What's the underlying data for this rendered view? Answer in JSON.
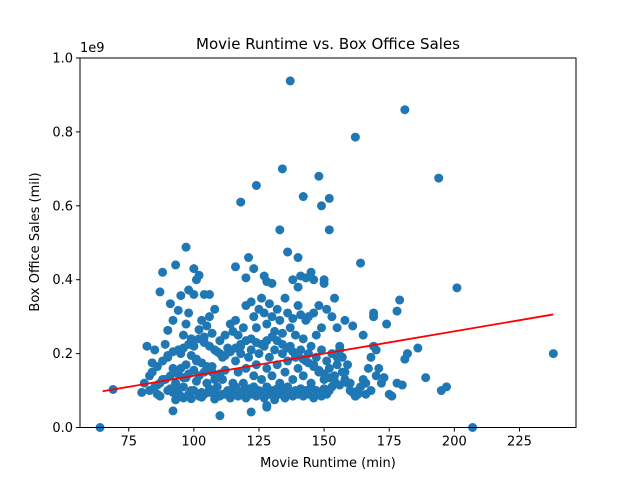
{
  "chart_data": {
    "type": "scatter",
    "title": "Movie Runtime vs. Box Office Sales",
    "xlabel": "Movie Runtime (min)",
    "ylabel": "Box Office Sales (mil)",
    "offset_text": "1e9",
    "xlim": [
      56.3,
      246.7
    ],
    "ylim": [
      0,
      1.0
    ],
    "xticks": [
      75,
      100,
      125,
      150,
      175,
      200,
      225
    ],
    "yticks": [
      0.0,
      0.2,
      0.4,
      0.6,
      0.8,
      1.0
    ],
    "ytick_labels": [
      "0.0",
      "0.2",
      "0.4",
      "0.6",
      "0.8",
      "1.0"
    ],
    "grid": false,
    "legend": "none",
    "point_color": "#1f77b4",
    "trend_color": "#ff0000",
    "trendline": {
      "x": [
        65,
        238
      ],
      "y": [
        0.098,
        0.306
      ]
    },
    "points": [
      [
        64,
        0.0
      ],
      [
        69,
        0.103
      ],
      [
        86,
        0.09
      ],
      [
        87,
        0.085
      ],
      [
        88,
        0.42
      ],
      [
        87,
        0.367
      ],
      [
        90,
        0.263
      ],
      [
        91,
        0.335
      ],
      [
        92,
        0.29
      ],
      [
        93,
        0.44
      ],
      [
        94,
        0.317
      ],
      [
        95,
        0.357
      ],
      [
        97,
        0.488
      ],
      [
        98,
        0.372
      ],
      [
        100,
        0.43
      ],
      [
        101,
        0.4
      ],
      [
        102,
        0.412
      ],
      [
        104,
        0.36
      ],
      [
        106,
        0.36
      ],
      [
        100,
        0.36
      ],
      [
        80,
        0.095
      ],
      [
        82,
        0.22
      ],
      [
        84,
        0.175
      ],
      [
        85,
        0.21
      ],
      [
        83,
        0.14
      ],
      [
        89,
        0.225
      ],
      [
        90,
        0.19
      ],
      [
        92,
        0.16
      ],
      [
        93,
        0.12
      ],
      [
        95,
        0.2
      ],
      [
        96,
        0.25
      ],
      [
        97,
        0.28
      ],
      [
        98,
        0.31
      ],
      [
        99,
        0.24
      ],
      [
        100,
        0.22
      ],
      [
        101,
        0.18
      ],
      [
        102,
        0.265
      ],
      [
        103,
        0.29
      ],
      [
        104,
        0.245
      ],
      [
        105,
        0.275
      ],
      [
        106,
        0.3
      ],
      [
        107,
        0.255
      ],
      [
        108,
        0.32
      ],
      [
        109,
        0.205
      ],
      [
        110,
        0.235
      ],
      [
        111,
        0.19
      ],
      [
        112,
        0.25
      ],
      [
        113,
        0.215
      ],
      [
        114,
        0.28
      ],
      [
        115,
        0.26
      ],
      [
        86,
        0.115
      ],
      [
        88,
        0.13
      ],
      [
        91,
        0.105
      ],
      [
        93,
        0.09
      ],
      [
        94,
        0.145
      ],
      [
        96,
        0.11
      ],
      [
        97,
        0.135
      ],
      [
        99,
        0.1
      ],
      [
        101,
        0.125
      ],
      [
        102,
        0.14
      ],
      [
        103,
        0.095
      ],
      [
        104,
        0.15
      ],
      [
        105,
        0.12
      ],
      [
        106,
        0.105
      ],
      [
        107,
        0.165
      ],
      [
        108,
        0.13
      ],
      [
        109,
        0.11
      ],
      [
        110,
        0.145
      ],
      [
        111,
        0.09
      ],
      [
        112,
        0.155
      ],
      [
        92,
        0.045
      ],
      [
        110,
        0.032
      ],
      [
        122,
        0.042
      ],
      [
        128,
        0.06
      ],
      [
        93,
        0.075
      ],
      [
        96,
        0.08
      ],
      [
        99,
        0.078
      ],
      [
        103,
        0.082
      ],
      [
        108,
        0.077
      ],
      [
        114,
        0.08
      ],
      [
        116,
        0.435
      ],
      [
        118,
        0.61
      ],
      [
        120,
        0.405
      ],
      [
        121,
        0.46
      ],
      [
        123,
        0.43
      ],
      [
        124,
        0.655
      ],
      [
        127,
        0.41
      ],
      [
        128,
        0.395
      ],
      [
        130,
        0.39
      ],
      [
        133,
        0.535
      ],
      [
        134,
        0.7
      ],
      [
        136,
        0.475
      ],
      [
        137,
        0.938
      ],
      [
        138,
        0.4
      ],
      [
        140,
        0.38
      ],
      [
        140,
        0.46
      ],
      [
        141,
        0.41
      ],
      [
        142,
        0.625
      ],
      [
        143,
        0.405
      ],
      [
        145,
        0.42
      ],
      [
        146,
        0.4
      ],
      [
        148,
        0.68
      ],
      [
        149,
        0.6
      ],
      [
        150,
        0.39
      ],
      [
        152,
        0.62
      ],
      [
        152,
        0.535
      ],
      [
        150,
        0.4
      ],
      [
        164,
        0.445
      ],
      [
        162,
        0.786
      ],
      [
        181,
        0.86
      ],
      [
        194,
        0.675
      ],
      [
        201,
        0.378
      ],
      [
        178,
        0.315
      ],
      [
        179,
        0.345
      ],
      [
        169,
        0.3
      ],
      [
        169,
        0.31
      ],
      [
        158,
        0.29
      ],
      [
        161,
        0.275
      ],
      [
        165,
        0.25
      ],
      [
        174,
        0.28
      ],
      [
        116,
        0.29
      ],
      [
        117,
        0.25
      ],
      [
        118,
        0.22
      ],
      [
        119,
        0.27
      ],
      [
        120,
        0.33
      ],
      [
        122,
        0.34
      ],
      [
        123,
        0.3
      ],
      [
        124,
        0.27
      ],
      [
        125,
        0.32
      ],
      [
        126,
        0.35
      ],
      [
        127,
        0.31
      ],
      [
        128,
        0.28
      ],
      [
        129,
        0.335
      ],
      [
        130,
        0.3
      ],
      [
        131,
        0.26
      ],
      [
        132,
        0.32
      ],
      [
        133,
        0.29
      ],
      [
        134,
        0.255
      ],
      [
        135,
        0.35
      ],
      [
        136,
        0.31
      ],
      [
        137,
        0.27
      ],
      [
        138,
        0.295
      ],
      [
        139,
        0.25
      ],
      [
        140,
        0.33
      ],
      [
        141,
        0.305
      ],
      [
        142,
        0.24
      ],
      [
        143,
        0.29
      ],
      [
        144,
        0.3
      ],
      [
        145,
        0.22
      ],
      [
        146,
        0.31
      ],
      [
        147,
        0.25
      ],
      [
        148,
        0.33
      ],
      [
        149,
        0.27
      ],
      [
        151,
        0.32
      ],
      [
        153,
        0.3
      ],
      [
        154,
        0.35
      ],
      [
        155,
        0.27
      ],
      [
        156,
        0.22
      ],
      [
        157,
        0.19
      ],
      [
        159,
        0.17
      ],
      [
        116,
        0.18
      ],
      [
        117,
        0.15
      ],
      [
        118,
        0.2
      ],
      [
        119,
        0.12
      ],
      [
        120,
        0.16
      ],
      [
        121,
        0.19
      ],
      [
        122,
        0.21
      ],
      [
        123,
        0.14
      ],
      [
        124,
        0.17
      ],
      [
        125,
        0.2
      ],
      [
        126,
        0.13
      ],
      [
        127,
        0.22
      ],
      [
        128,
        0.16
      ],
      [
        129,
        0.19
      ],
      [
        130,
        0.14
      ],
      [
        131,
        0.21
      ],
      [
        132,
        0.17
      ],
      [
        133,
        0.12
      ],
      [
        134,
        0.2
      ],
      [
        135,
        0.15
      ],
      [
        136,
        0.18
      ],
      [
        137,
        0.22
      ],
      [
        138,
        0.13
      ],
      [
        139,
        0.19
      ],
      [
        140,
        0.16
      ],
      [
        141,
        0.21
      ],
      [
        142,
        0.14
      ],
      [
        143,
        0.18
      ],
      [
        144,
        0.2
      ],
      [
        145,
        0.12
      ],
      [
        146,
        0.17
      ],
      [
        147,
        0.19
      ],
      [
        148,
        0.15
      ],
      [
        149,
        0.21
      ],
      [
        150,
        0.13
      ],
      [
        151,
        0.18
      ],
      [
        152,
        0.16
      ],
      [
        153,
        0.2
      ],
      [
        154,
        0.14
      ],
      [
        155,
        0.17
      ],
      [
        114,
        0.1
      ],
      [
        115,
        0.09
      ],
      [
        116,
        0.11
      ],
      [
        117,
        0.085
      ],
      [
        118,
        0.095
      ],
      [
        119,
        0.1
      ],
      [
        120,
        0.08
      ],
      [
        121,
        0.105
      ],
      [
        122,
        0.09
      ],
      [
        123,
        0.11
      ],
      [
        124,
        0.085
      ],
      [
        125,
        0.1
      ],
      [
        126,
        0.095
      ],
      [
        127,
        0.08
      ],
      [
        128,
        0.11
      ],
      [
        129,
        0.09
      ],
      [
        130,
        0.1
      ],
      [
        131,
        0.085
      ],
      [
        132,
        0.105
      ],
      [
        133,
        0.09
      ],
      [
        134,
        0.1
      ],
      [
        135,
        0.08
      ],
      [
        136,
        0.11
      ],
      [
        137,
        0.095
      ],
      [
        138,
        0.085
      ],
      [
        139,
        0.1
      ],
      [
        140,
        0.09
      ],
      [
        141,
        0.105
      ],
      [
        142,
        0.085
      ],
      [
        143,
        0.1
      ],
      [
        144,
        0.09
      ],
      [
        145,
        0.11
      ],
      [
        146,
        0.08
      ],
      [
        147,
        0.1
      ],
      [
        148,
        0.095
      ],
      [
        149,
        0.085
      ],
      [
        150,
        0.105
      ],
      [
        151,
        0.09
      ],
      [
        152,
        0.1
      ],
      [
        153,
        0.11
      ],
      [
        155,
        0.19
      ],
      [
        156,
        0.21
      ],
      [
        157,
        0.15
      ],
      [
        158,
        0.13
      ],
      [
        159,
        0.12
      ],
      [
        160,
        0.1
      ],
      [
        161,
        0.095
      ],
      [
        162,
        0.085
      ],
      [
        163,
        0.09
      ],
      [
        164,
        0.11
      ],
      [
        165,
        0.13
      ],
      [
        166,
        0.12
      ],
      [
        167,
        0.16
      ],
      [
        168,
        0.19
      ],
      [
        169,
        0.22
      ],
      [
        170,
        0.14
      ],
      [
        171,
        0.16
      ],
      [
        172,
        0.12
      ],
      [
        173,
        0.135
      ],
      [
        175,
        0.09
      ],
      [
        176,
        0.085
      ],
      [
        178,
        0.12
      ],
      [
        180,
        0.115
      ],
      [
        181,
        0.185
      ],
      [
        182,
        0.2
      ],
      [
        186,
        0.215
      ],
      [
        189,
        0.135
      ],
      [
        195,
        0.1
      ],
      [
        197,
        0.11
      ],
      [
        207,
        0.0
      ],
      [
        238,
        0.2
      ],
      [
        163,
        0.1
      ],
      [
        162,
        0.085
      ],
      [
        160,
        0.12
      ],
      [
        158,
        0.15
      ],
      [
        166,
        0.09
      ],
      [
        168,
        0.1
      ],
      [
        170,
        0.21
      ],
      [
        128,
        0.055
      ],
      [
        131,
        0.075
      ],
      [
        90,
        0.1
      ],
      [
        92,
        0.095
      ],
      [
        94,
        0.1
      ],
      [
        95,
        0.085
      ],
      [
        98,
        0.09
      ],
      [
        100,
        0.1
      ],
      [
        102,
        0.085
      ],
      [
        104,
        0.09
      ],
      [
        106,
        0.095
      ],
      [
        108,
        0.1
      ],
      [
        110,
        0.085
      ],
      [
        112,
        0.09
      ],
      [
        113,
        0.1
      ],
      [
        115,
        0.12
      ],
      [
        111,
        0.13
      ],
      [
        109,
        0.14
      ],
      [
        107,
        0.15
      ],
      [
        105,
        0.165
      ],
      [
        103,
        0.175
      ],
      [
        101,
        0.185
      ],
      [
        99,
        0.195
      ],
      [
        97,
        0.17
      ],
      [
        95,
        0.16
      ],
      [
        93,
        0.15
      ],
      [
        91,
        0.14
      ],
      [
        89,
        0.13
      ],
      [
        87,
        0.12
      ],
      [
        85,
        0.11
      ],
      [
        83,
        0.1
      ],
      [
        81,
        0.12
      ],
      [
        84,
        0.15
      ],
      [
        86,
        0.165
      ],
      [
        88,
        0.18
      ],
      [
        90,
        0.195
      ],
      [
        92,
        0.205
      ],
      [
        94,
        0.21
      ],
      [
        96,
        0.215
      ],
      [
        98,
        0.225
      ],
      [
        100,
        0.235
      ],
      [
        102,
        0.24
      ],
      [
        104,
        0.23
      ],
      [
        106,
        0.22
      ],
      [
        108,
        0.21
      ],
      [
        110,
        0.2
      ],
      [
        112,
        0.195
      ],
      [
        114,
        0.205
      ],
      [
        116,
        0.215
      ],
      [
        118,
        0.225
      ],
      [
        120,
        0.235
      ],
      [
        122,
        0.24
      ],
      [
        124,
        0.23
      ],
      [
        126,
        0.225
      ],
      [
        128,
        0.235
      ],
      [
        130,
        0.245
      ],
      [
        132,
        0.235
      ],
      [
        134,
        0.225
      ],
      [
        136,
        0.215
      ],
      [
        138,
        0.205
      ],
      [
        140,
        0.195
      ],
      [
        142,
        0.185
      ],
      [
        144,
        0.175
      ],
      [
        146,
        0.165
      ],
      [
        148,
        0.155
      ],
      [
        150,
        0.145
      ],
      [
        152,
        0.135
      ],
      [
        154,
        0.125
      ],
      [
        156,
        0.115
      ],
      [
        96,
        0.135
      ],
      [
        98,
        0.145
      ],
      [
        100,
        0.155
      ]
    ]
  }
}
